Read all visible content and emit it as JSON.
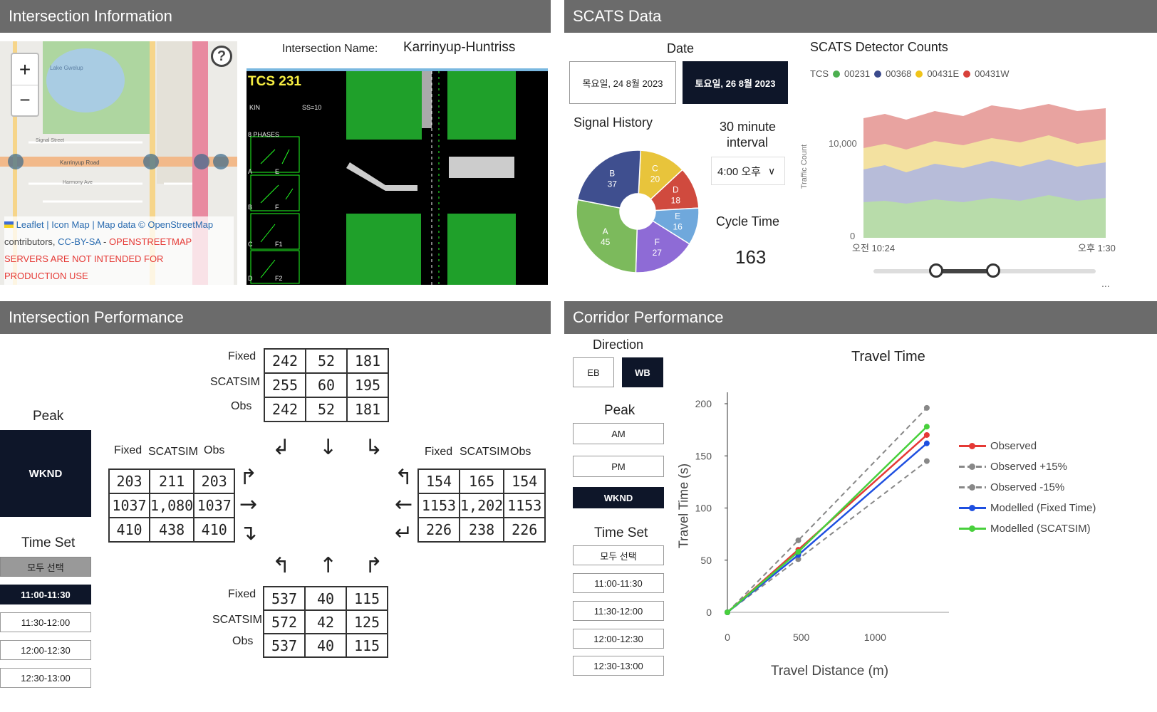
{
  "headers": {
    "intersection_info": "Intersection Information",
    "scats_data": "SCATS Data",
    "intersection_performance": "Intersection Performance",
    "corridor_performance": "Corridor Performance"
  },
  "map": {
    "zoom_in": "+",
    "zoom_out": "−",
    "help": "?",
    "attribution_line1": "Leaflet | Icon Map | Map data © OpenStreetMap",
    "attribution_line2_a": "contributors, ",
    "attribution_line2_b": "CC-BY-SA",
    "attribution_line2_c": " - ",
    "attribution_line2_d": "OPENSTREETMAP",
    "attribution_warning": "SERVERS ARE NOT INTENDED FOR PRODUCTION USE",
    "streets": [
      "Karrinyup Road",
      "Harmony Ave",
      "Signal Street",
      "Lake Gwelup"
    ]
  },
  "intersection": {
    "name_label": "Intersection Name:",
    "name_value": "Karrinyup-Huntriss",
    "tcs_label": "TCS 231",
    "tcs_sub1": "KIN",
    "tcs_sub2": "SS=10",
    "phases_label": "8 PHASES",
    "phase_letters_left": [
      "A",
      "B",
      "C",
      "D"
    ],
    "phase_letters_right": [
      "E",
      "F",
      "F1",
      "F2"
    ]
  },
  "scats": {
    "date_label": "Date",
    "date_start": "목요일, 24 8월 2023",
    "date_end": "토요일, 26 8월 2023",
    "signal_history_label": "Signal History",
    "interval_label_1": "30 minute",
    "interval_label_2": "interval",
    "interval_value": "4:00 오후",
    "cycle_time_label": "Cycle Time",
    "cycle_time_value": "163",
    "detector_title": "SCATS Detector Counts",
    "legend_prefix": "TCS",
    "legend": [
      {
        "name": "00231",
        "color": "#4caf50"
      },
      {
        "name": "00368",
        "color": "#3b4a8c"
      },
      {
        "name": "00431E",
        "color": "#f0c419"
      },
      {
        "name": "00431W",
        "color": "#d8413a"
      }
    ],
    "y_axis_label": "Traffic Count",
    "y_tick_10000": "10,000",
    "y_tick_0": "0",
    "x_start": "오전 10:24",
    "x_end": "오후 1:30",
    "more": "..."
  },
  "pie": {
    "slices": [
      {
        "label": "C",
        "value": 20,
        "color": "#e8c43b"
      },
      {
        "label": "D",
        "value": 18,
        "color": "#d04a3e"
      },
      {
        "label": "E",
        "value": 16,
        "color": "#6fa8dc"
      },
      {
        "label": "F",
        "value": 27,
        "color": "#8e6bd6"
      },
      {
        "label": "A",
        "value": 45,
        "color": "#7cba5c"
      },
      {
        "label": "B",
        "value": 37,
        "color": "#3f4f8f"
      }
    ]
  },
  "performance": {
    "peak_label": "Peak",
    "peak_value": "WKND",
    "time_set_label": "Time Set",
    "time_sets": [
      "모두 선택",
      "11:00-11:30",
      "11:30-12:00",
      "12:00-12:30",
      "12:30-13:00"
    ],
    "row_labels": [
      "Fixed",
      "SCATSIM",
      "Obs"
    ],
    "north": [
      [
        "242",
        "52",
        "181"
      ],
      [
        "255",
        "60",
        "195"
      ],
      [
        "242",
        "52",
        "181"
      ]
    ],
    "west_headers": [
      "Fixed",
      "SCATSIM",
      "Obs"
    ],
    "west": [
      [
        "203",
        "211",
        "203"
      ],
      [
        "1037",
        "1,080",
        "1037"
      ],
      [
        "410",
        "438",
        "410"
      ]
    ],
    "east_headers": [
      "Fixed",
      "SCATSIM",
      "Obs"
    ],
    "east": [
      [
        "154",
        "165",
        "154"
      ],
      [
        "1153",
        "1,202",
        "1153"
      ],
      [
        "226",
        "238",
        "226"
      ]
    ],
    "south": [
      [
        "537",
        "40",
        "115"
      ],
      [
        "572",
        "42",
        "125"
      ],
      [
        "537",
        "40",
        "115"
      ]
    ]
  },
  "corridor": {
    "direction_label": "Direction",
    "dir_eb": "EB",
    "dir_wb": "WB",
    "peak_label": "Peak",
    "peaks": [
      "AM",
      "PM",
      "WKND"
    ],
    "time_set_label": "Time Set",
    "time_sets": [
      "모두 선택",
      "11:00-11:30",
      "11:30-12:00",
      "12:00-12:30",
      "12:30-13:00"
    ]
  },
  "chart_data": {
    "type": "line",
    "title": "Travel Time",
    "xlabel": "Travel Distance (m)",
    "ylabel": "Travel Time (s)",
    "xlim": [
      0,
      1500
    ],
    "ylim": [
      0,
      200
    ],
    "x_ticks": [
      "0",
      "500",
      "1000"
    ],
    "y_ticks": [
      "0",
      "50",
      "100",
      "150",
      "200"
    ],
    "series": [
      {
        "name": "Observed",
        "color": "#e53935",
        "dashed": false,
        "x": [
          0,
          480,
          1350
        ],
        "y": [
          0,
          60,
          170
        ]
      },
      {
        "name": "Observed +15%",
        "color": "#888888",
        "dashed": true,
        "x": [
          0,
          480,
          1350
        ],
        "y": [
          0,
          69,
          196
        ]
      },
      {
        "name": "Observed -15%",
        "color": "#888888",
        "dashed": true,
        "x": [
          0,
          480,
          1350
        ],
        "y": [
          0,
          51,
          145
        ]
      },
      {
        "name": "Modelled (Fixed Time)",
        "color": "#1e4fe0",
        "dashed": false,
        "x": [
          0,
          480,
          1350
        ],
        "y": [
          0,
          55,
          162
        ]
      },
      {
        "name": "Modelled (SCATSIM)",
        "color": "#48d03c",
        "dashed": false,
        "x": [
          0,
          480,
          1350
        ],
        "y": [
          0,
          58,
          178
        ]
      }
    ]
  }
}
